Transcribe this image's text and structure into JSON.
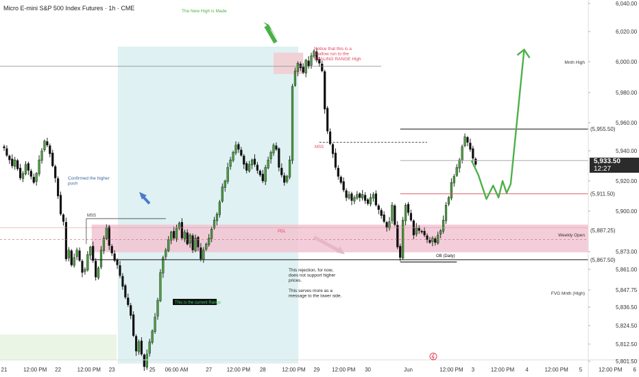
{
  "title": "Micro E-mini S&P 500 Index Futures · 1h · CME",
  "colors": {
    "up": "#4a9e3f",
    "down": "#111111",
    "wick": "#222222",
    "range_fill": "#dff1f2",
    "zone_fill": "#f2c4d4",
    "green_arrow": "#4cb04a",
    "blue_arrow": "#4a7cc9",
    "red_text": "#e0445a",
    "accent_line": "#e05a66"
  },
  "chart_data": {
    "type": "candlestick",
    "instrument": "Micro E-mini S&P 500 Index Futures · 1h · CME",
    "y_axis": {
      "ylim": [
        5798,
        6042
      ],
      "ticks": [
        6040,
        6020,
        6000,
        5980,
        5960,
        5940,
        5920,
        5900,
        5873,
        5861,
        5847.75,
        5836.5,
        5824.5,
        5812.5,
        5801.5
      ],
      "tick_labels": [
        "6,040.00",
        "6,020.00",
        "6,000.00",
        "5,980.00",
        "5,960.00",
        "5,940.00",
        "5,920.00",
        "5,900.00",
        "5,873.00",
        "5,861.00",
        "5,847.75",
        "5,836.50",
        "5,824.50",
        "5,812.50",
        "5,801.50"
      ]
    },
    "x_axis": {
      "ticks": [
        {
          "label": "21",
          "pos": 0
        },
        {
          "label": "12:00 PM",
          "pos": 11.5
        },
        {
          "label": "22",
          "pos": 20
        },
        {
          "label": "12:00 PM",
          "pos": 31.5
        },
        {
          "label": "23",
          "pos": 40
        },
        {
          "label": "25",
          "pos": 55
        },
        {
          "label": "06:00 AM",
          "pos": 64
        },
        {
          "label": "27",
          "pos": 76
        },
        {
          "label": "12:00 PM",
          "pos": 87
        },
        {
          "label": "28",
          "pos": 96
        },
        {
          "label": "12:00 PM",
          "pos": 107.5
        },
        {
          "label": "29",
          "pos": 116
        },
        {
          "label": "12:00 PM",
          "pos": 126
        },
        {
          "label": "30",
          "pos": 135
        },
        {
          "label": "Jun",
          "pos": 150
        },
        {
          "label": "12:00 PM",
          "pos": 166
        },
        {
          "label": "3",
          "pos": 174
        },
        {
          "label": "12:00 PM",
          "pos": 185
        },
        {
          "label": "4",
          "pos": 194
        },
        {
          "label": "12:00 PM",
          "pos": 205
        },
        {
          "label": "5",
          "pos": 214
        },
        {
          "label": "12:00 PM",
          "pos": 225
        },
        {
          "label": "6",
          "pos": 234
        }
      ]
    },
    "candle_closes": [
      5942,
      5937,
      5934,
      5930,
      5934,
      5928,
      5922,
      5925,
      5931,
      5927,
      5923,
      5919,
      5925,
      5934,
      5940,
      5947,
      5944,
      5938,
      5930,
      5922,
      5910,
      5898,
      5893,
      5868,
      5874,
      5864,
      5869,
      5874,
      5867,
      5859,
      5861,
      5871,
      5876,
      5867,
      5856,
      5862,
      5874,
      5882,
      5889,
      5877,
      5872,
      5867,
      5864,
      5857,
      5850,
      5843,
      5838,
      5831,
      5818,
      5808,
      5814,
      5806,
      5798,
      5806,
      5814,
      5821,
      5830,
      5841,
      5859,
      5869,
      5874,
      5881,
      5886,
      5882,
      5889,
      5892,
      5882,
      5886,
      5878,
      5884,
      5874,
      5882,
      5876,
      5868,
      5874,
      5878,
      5882,
      5888,
      5894,
      5898,
      5906,
      5916,
      5920,
      5929,
      5934,
      5939,
      5944,
      5941,
      5937,
      5931,
      5927,
      5931,
      5934,
      5931,
      5927,
      5924,
      5920,
      5929,
      5934,
      5939,
      5944,
      5941,
      5929,
      5924,
      5919,
      5923,
      5934,
      5984,
      5994,
      5999,
      5996,
      5993,
      6001,
      5997,
      6004,
      6007,
      6001,
      5999,
      5994,
      5969,
      5954,
      5945,
      5938,
      5929,
      5923,
      5919,
      5914,
      5909,
      5911,
      5907,
      5909,
      5911,
      5909,
      5911,
      5907,
      5905,
      5909,
      5911,
      5904,
      5901,
      5897,
      5893,
      5889,
      5893,
      5904,
      5891,
      5876,
      5869,
      5894,
      5904,
      5899,
      5894,
      5884,
      5889,
      5887,
      5886,
      5884,
      5881,
      5879,
      5882,
      5879,
      5884,
      5887,
      5894,
      5904,
      5909,
      5919,
      5923,
      5929,
      5934,
      5943,
      5950,
      5946,
      5941,
      5935,
      5931
    ],
    "projection": [
      [
        173.5,
        5933.5
      ],
      [
        176,
        5924
      ],
      [
        179,
        5908
      ],
      [
        181.5,
        5917
      ],
      [
        183.5,
        5909
      ],
      [
        185,
        5920
      ],
      [
        186.5,
        5912
      ],
      [
        188,
        5918
      ],
      [
        193,
        6008
      ]
    ],
    "levels": [
      {
        "label": "(5,955.50)",
        "price": 5955.5,
        "x_from": 159,
        "style": "solid"
      },
      {
        "label": "(5,933.50)",
        "price": 5933.5,
        "x_from": 159,
        "style": "solid-gray"
      },
      {
        "label": "(5,911.50)",
        "price": 5911.5,
        "x_from": 159,
        "style": "red"
      },
      {
        "label": "(5,887.25)",
        "price": 5887.25,
        "x_from": 0,
        "style": "dashed"
      },
      {
        "label": "(5,867.50)",
        "price": 5867.5,
        "x_from": 37,
        "style": "solid"
      }
    ],
    "right_labels": [
      {
        "text": "Mnth High",
        "price": 6000
      },
      {
        "text": "Weekly Open",
        "price": 5884.5
      },
      {
        "text": "FVG Mnth (High)",
        "price": 5846
      }
    ]
  },
  "annotations": {
    "new_high": "The New High is Made",
    "notice": [
      "Notice that this is a",
      "shallow run to the",
      "DEALING RANGE High"
    ],
    "confirmed": [
      "Confirmed the higher",
      "push"
    ],
    "mss_left": "MSS",
    "mss_right": "MSS",
    "pdl": "PDL",
    "rejection": [
      "This rejection, for now,",
      "does not support higher",
      "prices.",
      "",
      "This serves more as a",
      "message to the lower side."
    ],
    "current_range": "This is the current Range",
    "ob": "OB (Daily)"
  },
  "price_badge": {
    "price": "5,933.50",
    "timer": "12:27"
  }
}
